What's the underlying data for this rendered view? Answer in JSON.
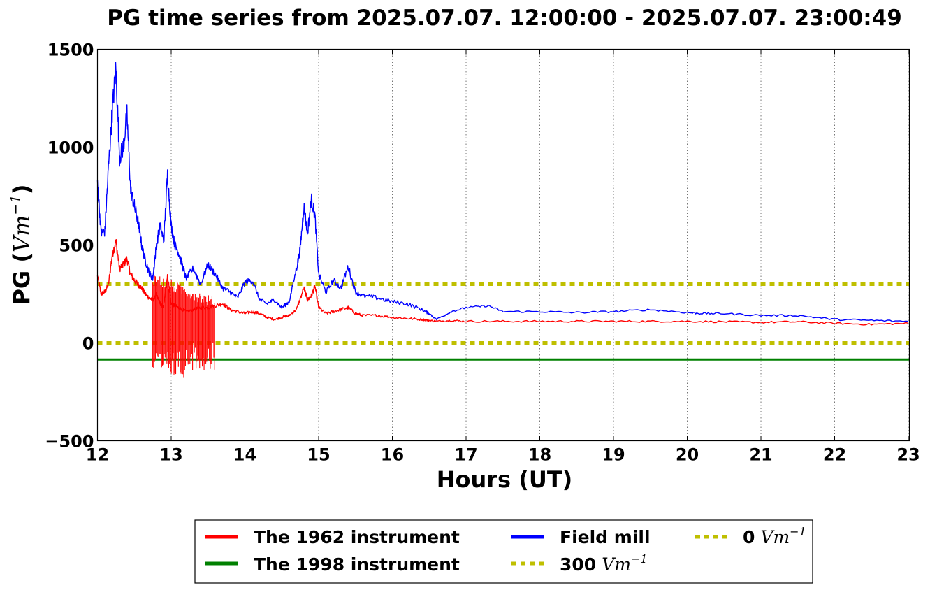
{
  "chart_data": {
    "type": "line",
    "title": "PG time series from 2025.07.07. 12:00:00 - 2025.07.07. 23:00:49",
    "xlabel": "Hours (UT)",
    "ylabel_prefix": "PG (",
    "ylabel_unit": "Vm",
    "ylabel_exp": "−1",
    "ylabel_suffix": ")",
    "xlim": [
      12,
      23.014
    ],
    "ylim": [
      -500,
      1500
    ],
    "x_ticks": [
      12,
      13,
      14,
      15,
      16,
      17,
      18,
      19,
      20,
      21,
      22,
      23
    ],
    "y_ticks": [
      -500,
      0,
      500,
      1000,
      1500
    ],
    "y_tick_labels": [
      "−500",
      "0",
      "500",
      "1000",
      "1500"
    ],
    "grid": true,
    "legend_placement": "bottom-center",
    "series": [
      {
        "name": "The 1962 instrument",
        "color": "#ff0000",
        "style": "solid",
        "x": [
          12.0,
          12.05,
          12.1,
          12.15,
          12.2,
          12.25,
          12.3,
          12.35,
          12.4,
          12.45,
          12.5,
          12.55,
          12.6,
          12.65,
          12.7,
          12.75,
          12.8,
          12.85,
          12.9,
          12.95,
          13.0,
          13.05,
          13.1,
          13.2,
          13.3,
          13.4,
          13.5,
          13.6,
          13.7,
          13.8,
          13.9,
          14.0,
          14.1,
          14.2,
          14.3,
          14.4,
          14.5,
          14.6,
          14.7,
          14.8,
          14.85,
          14.9,
          14.95,
          15.0,
          15.1,
          15.2,
          15.3,
          15.4,
          15.5,
          15.6,
          15.8,
          16.0,
          16.2,
          16.4,
          16.5,
          16.6,
          16.8,
          17.0,
          17.5,
          18.0,
          18.5,
          19.0,
          19.5,
          20.0,
          20.5,
          21.0,
          21.5,
          22.0,
          22.5,
          23.0
        ],
        "y": [
          340,
          250,
          260,
          300,
          450,
          520,
          380,
          400,
          430,
          350,
          320,
          300,
          280,
          250,
          230,
          220,
          250,
          200,
          180,
          350,
          200,
          190,
          180,
          160,
          170,
          180,
          180,
          190,
          200,
          170,
          160,
          150,
          160,
          150,
          130,
          120,
          130,
          140,
          170,
          280,
          220,
          240,
          290,
          180,
          150,
          160,
          170,
          180,
          150,
          140,
          140,
          130,
          125,
          120,
          115,
          110,
          115,
          110,
          110,
          110,
          110,
          110,
          110,
          110,
          108,
          105,
          108,
          100,
          95,
          100
        ]
      },
      {
        "name": "Field mill",
        "color": "#0000ff",
        "style": "solid",
        "x": [
          12.0,
          12.05,
          12.1,
          12.15,
          12.2,
          12.25,
          12.3,
          12.35,
          12.4,
          12.45,
          12.5,
          12.55,
          12.6,
          12.65,
          12.7,
          12.75,
          12.8,
          12.85,
          12.9,
          12.95,
          13.0,
          13.05,
          13.1,
          13.15,
          13.2,
          13.3,
          13.4,
          13.5,
          13.6,
          13.7,
          13.8,
          13.9,
          14.0,
          14.1,
          14.2,
          14.3,
          14.4,
          14.5,
          14.6,
          14.7,
          14.75,
          14.8,
          14.85,
          14.9,
          14.95,
          15.0,
          15.1,
          15.2,
          15.3,
          15.4,
          15.5,
          15.6,
          15.8,
          16.0,
          16.2,
          16.4,
          16.5,
          16.6,
          16.8,
          17.0,
          17.3,
          17.5,
          18.0,
          18.5,
          19.0,
          19.5,
          20.0,
          20.2,
          20.5,
          21.0,
          21.5,
          22.0,
          22.5,
          23.0
        ],
        "y": [
          820,
          560,
          570,
          900,
          1180,
          1400,
          950,
          1000,
          1170,
          780,
          700,
          620,
          500,
          420,
          360,
          330,
          500,
          600,
          520,
          860,
          600,
          500,
          460,
          400,
          330,
          380,
          300,
          400,
          350,
          280,
          260,
          230,
          310,
          320,
          220,
          200,
          220,
          180,
          210,
          380,
          480,
          700,
          560,
          740,
          650,
          350,
          260,
          320,
          280,
          390,
          260,
          240,
          230,
          210,
          200,
          170,
          150,
          120,
          160,
          180,
          190,
          160,
          160,
          155,
          160,
          170,
          155,
          150,
          150,
          140,
          140,
          120,
          115,
          110
        ]
      },
      {
        "name": "The 1998 instrument",
        "color": "#008000",
        "style": "solid",
        "x": [
          12.0,
          23.014
        ],
        "y": [
          -85,
          -85
        ]
      },
      {
        "name": "300 Vm−1",
        "color": "#bfbf00",
        "style": "dotted",
        "x": [
          12.0,
          23.014
        ],
        "y": [
          300,
          300
        ]
      },
      {
        "name": "0 Vm−1",
        "color": "#bfbf00",
        "style": "dotted",
        "x": [
          12.0,
          23.014
        ],
        "y": [
          0,
          0
        ]
      }
    ],
    "legend": [
      {
        "key": "red",
        "label": "The 1962 instrument",
        "color": "#ff0000",
        "style": "solid"
      },
      {
        "key": "green",
        "label": "The 1998 instrument",
        "color": "#008000",
        "style": "solid"
      },
      {
        "key": "blue",
        "label": "Field mill",
        "color": "#0000ff",
        "style": "solid"
      },
      {
        "key": "y300",
        "label_value": "300",
        "label_unit": "Vm",
        "label_exp": "−1",
        "color": "#bfbf00",
        "style": "dotted"
      },
      {
        "key": "y0",
        "label_value": "0",
        "label_unit": "Vm",
        "label_exp": "−1",
        "color": "#bfbf00",
        "style": "dotted"
      }
    ]
  }
}
